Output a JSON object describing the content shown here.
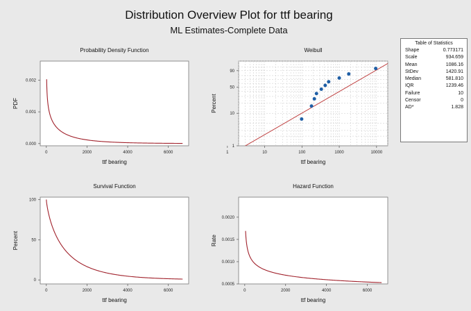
{
  "title": "Distribution Overview Plot for ttf bearing",
  "subtitle": "ML Estimates-Complete Data",
  "colors": {
    "background": "#e9e9e9",
    "curve": "#a0202a",
    "fit_line": "#c04040",
    "points": "#1f5fa6",
    "grid": "#c8c8c8"
  },
  "stats_table": {
    "title": "Table of Statistics",
    "rows": [
      {
        "label": "Shape",
        "value": "0.773171"
      },
      {
        "label": "Scale",
        "value": "934.659"
      },
      {
        "label": "Mean",
        "value": "1086.16"
      },
      {
        "label": "StDev",
        "value": "1420.91"
      },
      {
        "label": "Median",
        "value": "581.810"
      },
      {
        "label": "IQR",
        "value": "1239.46"
      },
      {
        "label": "Failure",
        "value": "10"
      },
      {
        "label": "Censor",
        "value": "0"
      },
      {
        "label": "AD*",
        "value": "1.828"
      }
    ]
  },
  "chart_data": [
    {
      "type": "line",
      "title": "Probability Density Function",
      "xlabel": "ttf bearing",
      "ylabel": "PDF",
      "xlim": [
        -300,
        7000
      ],
      "ylim": [
        -7e-05,
        0.0026
      ],
      "xticks": [
        "0",
        "2000",
        "4000",
        "6000"
      ],
      "xtick_values": [
        0,
        2000,
        4000,
        6000
      ],
      "yticks": [
        "0.000",
        "0.001",
        "0.002"
      ],
      "ytick_values": [
        0,
        0.001,
        0.002
      ],
      "curve": "weibull_pdf",
      "shape": 0.773171,
      "scale": 934.659,
      "x_range": [
        15,
        6700
      ]
    },
    {
      "type": "scatter",
      "title": "Weibull",
      "xlabel": "ttf bearing",
      "ylabel": "Percent",
      "x_scale": "log",
      "y_scale": "weibull",
      "xlim": [
        2,
        20000
      ],
      "ylim": [
        1,
        99
      ],
      "xticks": [
        "1",
        "10",
        "100",
        "1000",
        "10000"
      ],
      "xtick_values": [
        1,
        10,
        100,
        1000,
        10000
      ],
      "yticks": [
        "1",
        "10",
        "50",
        "90"
      ],
      "ytick_values": [
        1,
        10,
        50,
        90
      ],
      "points": [
        {
          "x": 98,
          "y": 6.7
        },
        {
          "x": 180,
          "y": 16.3
        },
        {
          "x": 215,
          "y": 25.9
        },
        {
          "x": 245,
          "y": 35.6
        },
        {
          "x": 330,
          "y": 45.2
        },
        {
          "x": 420,
          "y": 54.8
        },
        {
          "x": 520,
          "y": 64.4
        },
        {
          "x": 1000,
          "y": 74.1
        },
        {
          "x": 1800,
          "y": 83.7
        },
        {
          "x": 9500,
          "y": 93.3
        }
      ],
      "fit_line": {
        "shape": 0.773171,
        "scale": 934.659
      }
    },
    {
      "type": "line",
      "title": "Survival Function",
      "xlabel": "ttf bearing",
      "ylabel": "Percent",
      "xlim": [
        -300,
        7000
      ],
      "ylim": [
        -5,
        103
      ],
      "xticks": [
        "0",
        "2000",
        "4000",
        "6000"
      ],
      "xtick_values": [
        0,
        2000,
        4000,
        6000
      ],
      "yticks": [
        "0",
        "50",
        "100"
      ],
      "ytick_values": [
        0,
        50,
        100
      ],
      "curve": "weibull_survival",
      "shape": 0.773171,
      "scale": 934.659,
      "x_range": [
        0,
        6700
      ]
    },
    {
      "type": "line",
      "title": "Hazard Function",
      "xlabel": "ttf bearing",
      "ylabel": "Rate",
      "xlim": [
        -300,
        7000
      ],
      "ylim": [
        0.0005,
        0.00245
      ],
      "xticks": [
        "0",
        "2000",
        "4000",
        "6000"
      ],
      "xtick_values": [
        0,
        2000,
        4000,
        6000
      ],
      "yticks": [
        "0.0005",
        "0.0010",
        "0.0015",
        "0.0020"
      ],
      "ytick_values": [
        0.0005,
        0.001,
        0.0015,
        0.002
      ],
      "curve": "weibull_hazard",
      "shape": 0.773171,
      "scale": 934.659,
      "x_range": [
        40,
        6700
      ]
    }
  ]
}
